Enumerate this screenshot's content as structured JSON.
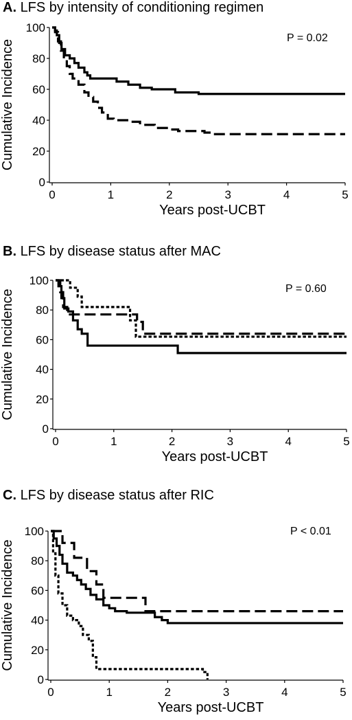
{
  "chart_data": [
    {
      "type": "line",
      "panel_letter": "A.",
      "title": "LFS by intensity of conditioning regimen",
      "xlabel": "Years post-UCBT",
      "ylabel": "Cumulative Incidence",
      "xlim": [
        0,
        5
      ],
      "ylim": [
        0,
        100
      ],
      "xticks": [
        0,
        1,
        2,
        3,
        4,
        5
      ],
      "yticks": [
        0,
        20,
        40,
        60,
        80,
        100
      ],
      "p_value_text": "P = 0.02",
      "step": true,
      "series": [
        {
          "style": "solid",
          "points": [
            [
              0,
              100
            ],
            [
              0.05,
              98
            ],
            [
              0.08,
              95
            ],
            [
              0.12,
              90
            ],
            [
              0.16,
              86
            ],
            [
              0.22,
              82
            ],
            [
              0.3,
              80
            ],
            [
              0.38,
              77
            ],
            [
              0.45,
              74
            ],
            [
              0.55,
              71
            ],
            [
              0.6,
              69
            ],
            [
              0.65,
              67
            ],
            [
              0.9,
              67
            ],
            [
              1.1,
              65
            ],
            [
              1.3,
              63
            ],
            [
              1.5,
              61
            ],
            [
              1.7,
              60
            ],
            [
              2.1,
              58
            ],
            [
              2.5,
              57
            ],
            [
              3.0,
              57
            ],
            [
              5.0,
              57
            ]
          ]
        },
        {
          "style": "dashed",
          "points": [
            [
              0,
              100
            ],
            [
              0.05,
              97
            ],
            [
              0.1,
              91
            ],
            [
              0.15,
              85
            ],
            [
              0.2,
              80
            ],
            [
              0.25,
              75
            ],
            [
              0.3,
              70
            ],
            [
              0.35,
              67
            ],
            [
              0.45,
              63
            ],
            [
              0.55,
              58
            ],
            [
              0.62,
              55
            ],
            [
              0.7,
              52
            ],
            [
              0.78,
              48
            ],
            [
              0.85,
              45
            ],
            [
              0.95,
              41
            ],
            [
              1.05,
              40
            ],
            [
              1.3,
              39
            ],
            [
              1.5,
              37
            ],
            [
              1.75,
              35
            ],
            [
              2.0,
              34
            ],
            [
              2.15,
              33
            ],
            [
              2.6,
              32
            ],
            [
              2.75,
              31
            ],
            [
              5.0,
              31
            ]
          ]
        }
      ]
    },
    {
      "type": "line",
      "panel_letter": "B.",
      "title": "LFS by disease status after MAC",
      "xlabel": "Years post-UCBT",
      "ylabel": "Cumulative Incidence",
      "xlim": [
        0,
        5
      ],
      "ylim": [
        0,
        100
      ],
      "xticks": [
        0,
        1,
        2,
        3,
        4,
        5
      ],
      "yticks": [
        0,
        20,
        40,
        60,
        80,
        100
      ],
      "p_value_text": "P = 0.60",
      "step": true,
      "series": [
        {
          "style": "solid",
          "points": [
            [
              0,
              100
            ],
            [
              0.05,
              96
            ],
            [
              0.1,
              88
            ],
            [
              0.15,
              81
            ],
            [
              0.22,
              79
            ],
            [
              0.3,
              73
            ],
            [
              0.38,
              67
            ],
            [
              0.45,
              64
            ],
            [
              0.55,
              56
            ],
            [
              0.7,
              56
            ],
            [
              2.1,
              51
            ],
            [
              5.0,
              51
            ]
          ]
        },
        {
          "style": "dashed",
          "points": [
            [
              0,
              100
            ],
            [
              0.08,
              92
            ],
            [
              0.13,
              82
            ],
            [
              0.2,
              77
            ],
            [
              0.6,
              77
            ],
            [
              1.15,
              77
            ],
            [
              1.4,
              72
            ],
            [
              1.5,
              64
            ],
            [
              1.55,
              64
            ],
            [
              5.0,
              64
            ]
          ]
        },
        {
          "style": "dotted",
          "points": [
            [
              0,
              100
            ],
            [
              0.25,
              95
            ],
            [
              0.38,
              89
            ],
            [
              0.45,
              82
            ],
            [
              1.1,
              82
            ],
            [
              1.28,
              73
            ],
            [
              1.38,
              62
            ],
            [
              5.0,
              62
            ]
          ]
        }
      ]
    },
    {
      "type": "line",
      "panel_letter": "C.",
      "title": "LFS by disease status after RIC",
      "xlabel": "Years post-UCBT",
      "ylabel": "Cumulative Incidence",
      "xlim": [
        0,
        5
      ],
      "ylim": [
        0,
        100
      ],
      "xticks": [
        0,
        1,
        2,
        3,
        4,
        5
      ],
      "yticks": [
        0,
        20,
        40,
        60,
        80,
        100
      ],
      "p_value_text": "P < 0.01",
      "step": true,
      "series": [
        {
          "style": "solid",
          "points": [
            [
              0,
              100
            ],
            [
              0.05,
              95
            ],
            [
              0.1,
              90
            ],
            [
              0.15,
              84
            ],
            [
              0.2,
              78
            ],
            [
              0.28,
              72
            ],
            [
              0.38,
              70
            ],
            [
              0.45,
              67
            ],
            [
              0.52,
              64
            ],
            [
              0.6,
              61
            ],
            [
              0.68,
              57
            ],
            [
              0.78,
              54
            ],
            [
              0.9,
              50
            ],
            [
              1.0,
              48
            ],
            [
              1.1,
              46
            ],
            [
              1.3,
              45
            ],
            [
              1.6,
              45
            ],
            [
              1.78,
              42
            ],
            [
              1.9,
              40
            ],
            [
              2.0,
              38
            ],
            [
              2.3,
              38
            ],
            [
              5.0,
              38
            ]
          ]
        },
        {
          "style": "dashed",
          "points": [
            [
              0,
              100
            ],
            [
              0.2,
              92
            ],
            [
              0.4,
              82
            ],
            [
              0.62,
              73
            ],
            [
              0.78,
              64
            ],
            [
              0.9,
              55
            ],
            [
              1.55,
              55
            ],
            [
              1.62,
              46
            ],
            [
              5.0,
              46
            ]
          ]
        },
        {
          "style": "dotted",
          "points": [
            [
              0,
              100
            ],
            [
              0.04,
              85
            ],
            [
              0.08,
              70
            ],
            [
              0.13,
              58
            ],
            [
              0.2,
              50
            ],
            [
              0.28,
              43
            ],
            [
              0.38,
              40
            ],
            [
              0.48,
              36
            ],
            [
              0.55,
              30
            ],
            [
              0.65,
              26
            ],
            [
              0.72,
              15
            ],
            [
              0.78,
              7
            ],
            [
              1.5,
              7
            ],
            [
              2.2,
              7
            ],
            [
              2.6,
              5
            ],
            [
              2.68,
              0
            ]
          ]
        }
      ]
    }
  ]
}
